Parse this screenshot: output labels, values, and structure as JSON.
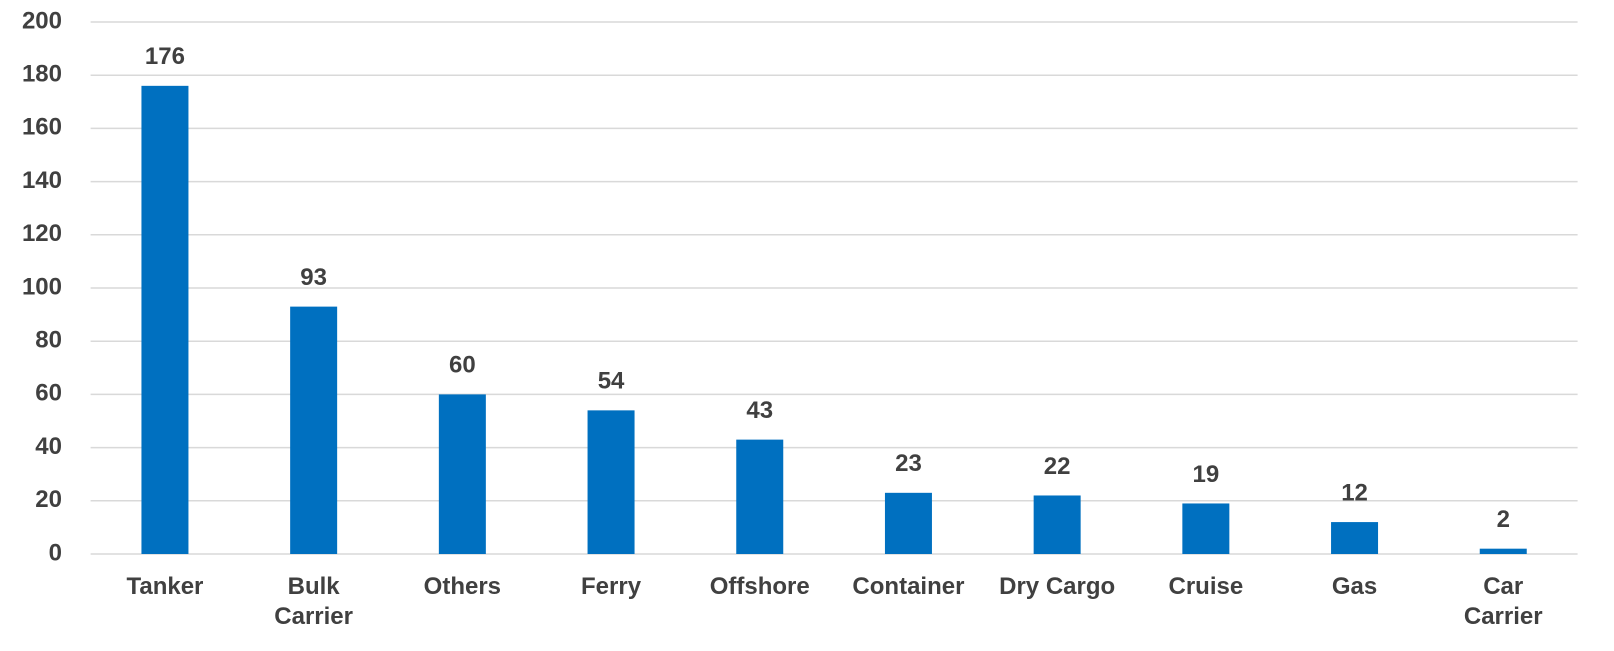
{
  "chart_data": {
    "type": "bar",
    "categories": [
      "Tanker",
      "Bulk Carrier",
      "Others",
      "Ferry",
      "Offshore",
      "Container",
      "Dry Cargo",
      "Cruise",
      "Gas",
      "Car Carrier"
    ],
    "values": [
      176,
      93,
      60,
      54,
      43,
      23,
      22,
      19,
      12,
      2
    ],
    "color": "#0070c0",
    "ylim": [
      0,
      200
    ],
    "yticks": [
      0,
      20,
      40,
      60,
      80,
      100,
      120,
      140,
      160,
      180,
      200
    ],
    "grid": true
  }
}
